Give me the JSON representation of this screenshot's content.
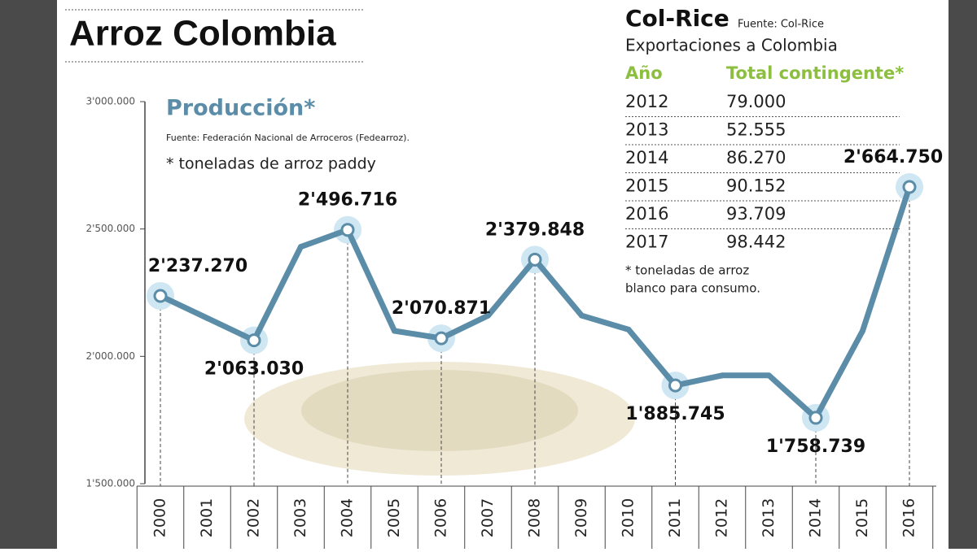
{
  "header": {
    "title": "Arroz Colombia"
  },
  "chart_data": {
    "type": "line",
    "title": "Producción*",
    "source": "Fuente: Federación Nacional de Arroceros (Fedearroz).",
    "note": "* toneladas de arroz paddy",
    "categories": [
      "2000",
      "2001",
      "2002",
      "2003",
      "2004",
      "2005",
      "2006",
      "2007",
      "2008",
      "2009",
      "2010",
      "2011",
      "2012",
      "2013",
      "2014",
      "2015",
      "2016"
    ],
    "values": [
      2237270,
      2150000,
      2063030,
      2430000,
      2496716,
      2100000,
      2070871,
      2160000,
      2379848,
      2160000,
      2105000,
      1885745,
      1925000,
      1925000,
      1758739,
      2100000,
      2664750
    ],
    "value_labels": [
      "2'237.270",
      null,
      "2'063.030",
      null,
      "2'496.716",
      null,
      "2'070.871",
      null,
      "2'379.848",
      null,
      null,
      "1'885.745",
      null,
      null,
      "1'758.739",
      null,
      "2'664.750"
    ],
    "color": "#5b8ca8",
    "ylim": [
      1500000,
      3000000
    ],
    "yticks": [
      {
        "value": 1500000,
        "label": "1'500.000"
      },
      {
        "value": 2000000,
        "label": "2'000.000"
      },
      {
        "value": 2500000,
        "label": "2'500.000"
      },
      {
        "value": 3000000,
        "label": "3'000.000"
      }
    ]
  },
  "table": {
    "title": "Col-Rice",
    "source": "Fuente: Col-Rice",
    "subtitle": "Exportaciones a Colombia",
    "columns": [
      "Año",
      "Total contingente*"
    ],
    "rows": [
      [
        "2012",
        "79.000"
      ],
      [
        "2013",
        "52.555"
      ],
      [
        "2014",
        "86.270"
      ],
      [
        "2015",
        "90.152"
      ],
      [
        "2016",
        "93.709"
      ],
      [
        "2017",
        "98.442"
      ]
    ],
    "note": [
      "* toneladas de arroz",
      "blanco para consumo."
    ]
  }
}
